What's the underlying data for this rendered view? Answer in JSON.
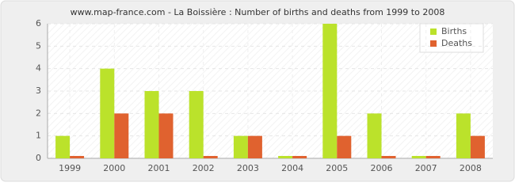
{
  "chart_data": {
    "type": "bar",
    "title": "www.map-france.com - La Boissière : Number of births and deaths from 1999 to 2008",
    "categories": [
      "1999",
      "2000",
      "2001",
      "2002",
      "2003",
      "2004",
      "2005",
      "2006",
      "2007",
      "2008"
    ],
    "series": [
      {
        "name": "Births",
        "color": "#bbe22b",
        "values": [
          1,
          4,
          3,
          3,
          1,
          0,
          6,
          2,
          0,
          2
        ]
      },
      {
        "name": "Deaths",
        "color": "#e0622f",
        "values": [
          0,
          2,
          2,
          0,
          1,
          0,
          1,
          0,
          0,
          1
        ]
      }
    ],
    "ylim": [
      0,
      6
    ],
    "yticks": [
      0,
      1,
      2,
      3,
      4,
      5,
      6
    ],
    "grid": true,
    "legend": "top-right"
  }
}
